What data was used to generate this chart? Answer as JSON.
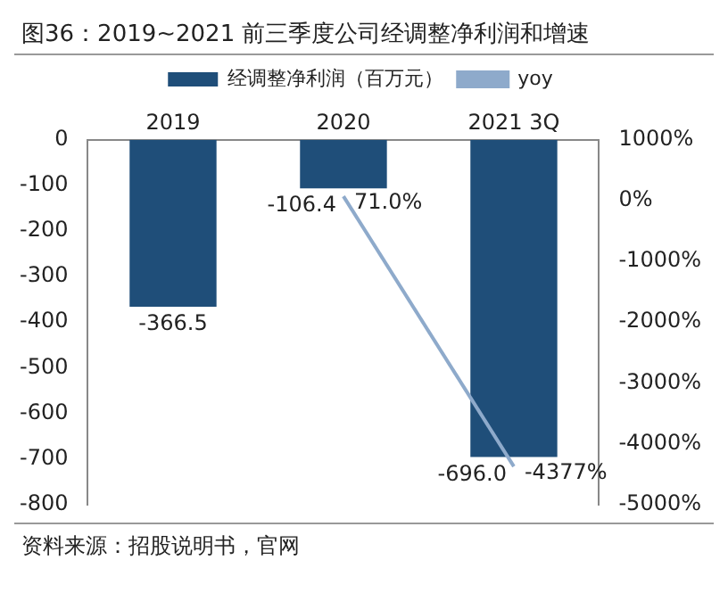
{
  "chart_data": {
    "type": "bar",
    "title": "图36：2019~2021 前三季度公司经调整净利润和增速",
    "categories": [
      "2019",
      "2020",
      "2021 3Q"
    ],
    "series": [
      {
        "name": "经调整净利润（百万元）",
        "color": "#1f4e79",
        "values": [
          -366.5,
          -106.4,
          -696.0
        ],
        "value_labels": [
          "-366.5",
          "-106.4",
          "-696.0"
        ]
      },
      {
        "name": "yoy",
        "type": "line",
        "axis": "y2",
        "color": "#8eaacb",
        "values": [
          null,
          71,
          -4377
        ],
        "value_labels": [
          null,
          "71.0%",
          "-4377%"
        ]
      }
    ],
    "ylim": [
      -800,
      0
    ],
    "yticks": [
      0,
      -100,
      -200,
      -300,
      -400,
      -500,
      -600,
      -700,
      -800
    ],
    "y2lim": [
      -5000,
      1000
    ],
    "y2ticks": [
      {
        "value": 1000,
        "label": "1000%"
      },
      {
        "value": 0,
        "label": "0%"
      },
      {
        "value": -1000,
        "label": "-1000%"
      },
      {
        "value": -2000,
        "label": "-2000%"
      },
      {
        "value": -3000,
        "label": "-3000%"
      },
      {
        "value": -4000,
        "label": "-4000%"
      },
      {
        "value": -5000,
        "label": "-5000%"
      }
    ],
    "grid": false,
    "legend": "top",
    "marker": "none",
    "annotations": [
      "资料来源：招股说明书，官网"
    ]
  }
}
